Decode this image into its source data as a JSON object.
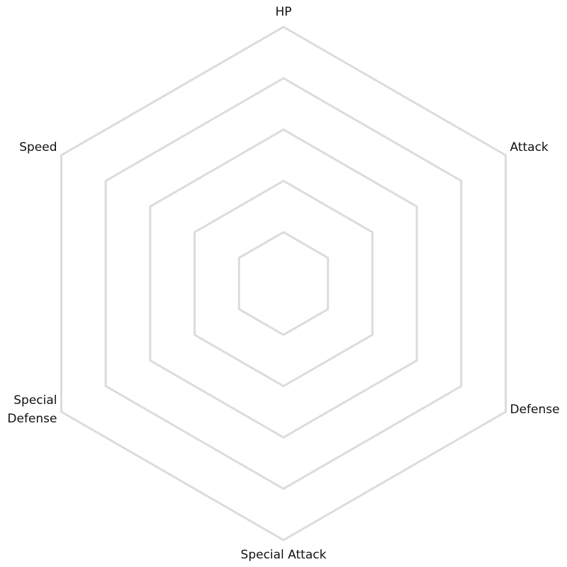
{
  "chart_data": {
    "type": "radar",
    "title": "",
    "axes": [
      "HP",
      "Attack",
      "Defense",
      "Special Attack",
      "Special Defense",
      "Speed"
    ],
    "axis_label_lines": [
      [
        "HP"
      ],
      [
        "Attack"
      ],
      [
        "Defense"
      ],
      [
        "Special Attack"
      ],
      [
        "Special",
        "Defense"
      ],
      [
        "Speed"
      ]
    ],
    "grid_levels": 5,
    "series": [],
    "grid": true,
    "legend": "none",
    "colors": {
      "grid": "#dcdcdc",
      "label": "#111111",
      "background": "#ffffff"
    }
  }
}
